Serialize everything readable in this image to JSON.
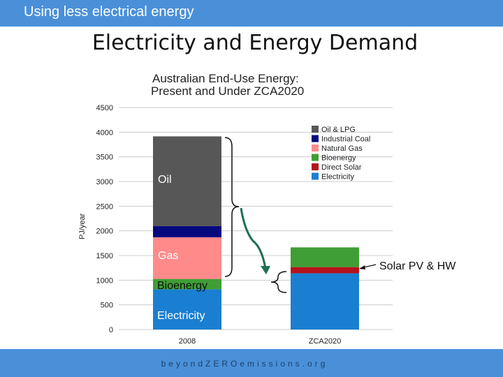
{
  "header": {
    "title": "Using less electrical energy"
  },
  "slide": {
    "title": "Electricity and Energy Demand"
  },
  "footer": {
    "url": "beyondZEROemissions.org"
  },
  "chart_data": {
    "type": "bar",
    "stacked": true,
    "title": "Australian End-Use Energy:",
    "subtitle": "Present and Under ZCA2020",
    "ylabel": "PJ/year",
    "xlabel": "",
    "ylim": [
      0,
      4500
    ],
    "yticks": [
      0,
      500,
      1000,
      1500,
      2000,
      2500,
      3000,
      3500,
      4000,
      4500
    ],
    "grid": true,
    "legend_position": "top-right",
    "categories": [
      "2008",
      "ZCA2020"
    ],
    "series": [
      {
        "name": "Electricity",
        "color": "#1a7fd1",
        "values": [
          815,
          1140
        ]
      },
      {
        "name": "Direct Solar",
        "color": "#b5121b",
        "values": [
          0,
          125
        ]
      },
      {
        "name": "Bioenergy",
        "color": "#3f9e35",
        "values": [
          210,
          400
        ]
      },
      {
        "name": "Natural Gas",
        "color": "#ff8a8a",
        "values": [
          845,
          0
        ]
      },
      {
        "name": "Industrial Coal",
        "color": "#06087e",
        "values": [
          225,
          0
        ]
      },
      {
        "name": "Oil & LPG",
        "color": "#575757",
        "values": [
          1820,
          0
        ]
      }
    ],
    "legend_order": [
      "Oil & LPG",
      "Industrial Coal",
      "Natural Gas",
      "Bioenergy",
      "Direct Solar",
      "Electricity"
    ],
    "annotations": {
      "oil": "Oil",
      "gas": "Gas",
      "bioenergy": "Bioenergy",
      "electricity": "Electricity",
      "solar": "Solar PV & HW"
    }
  }
}
